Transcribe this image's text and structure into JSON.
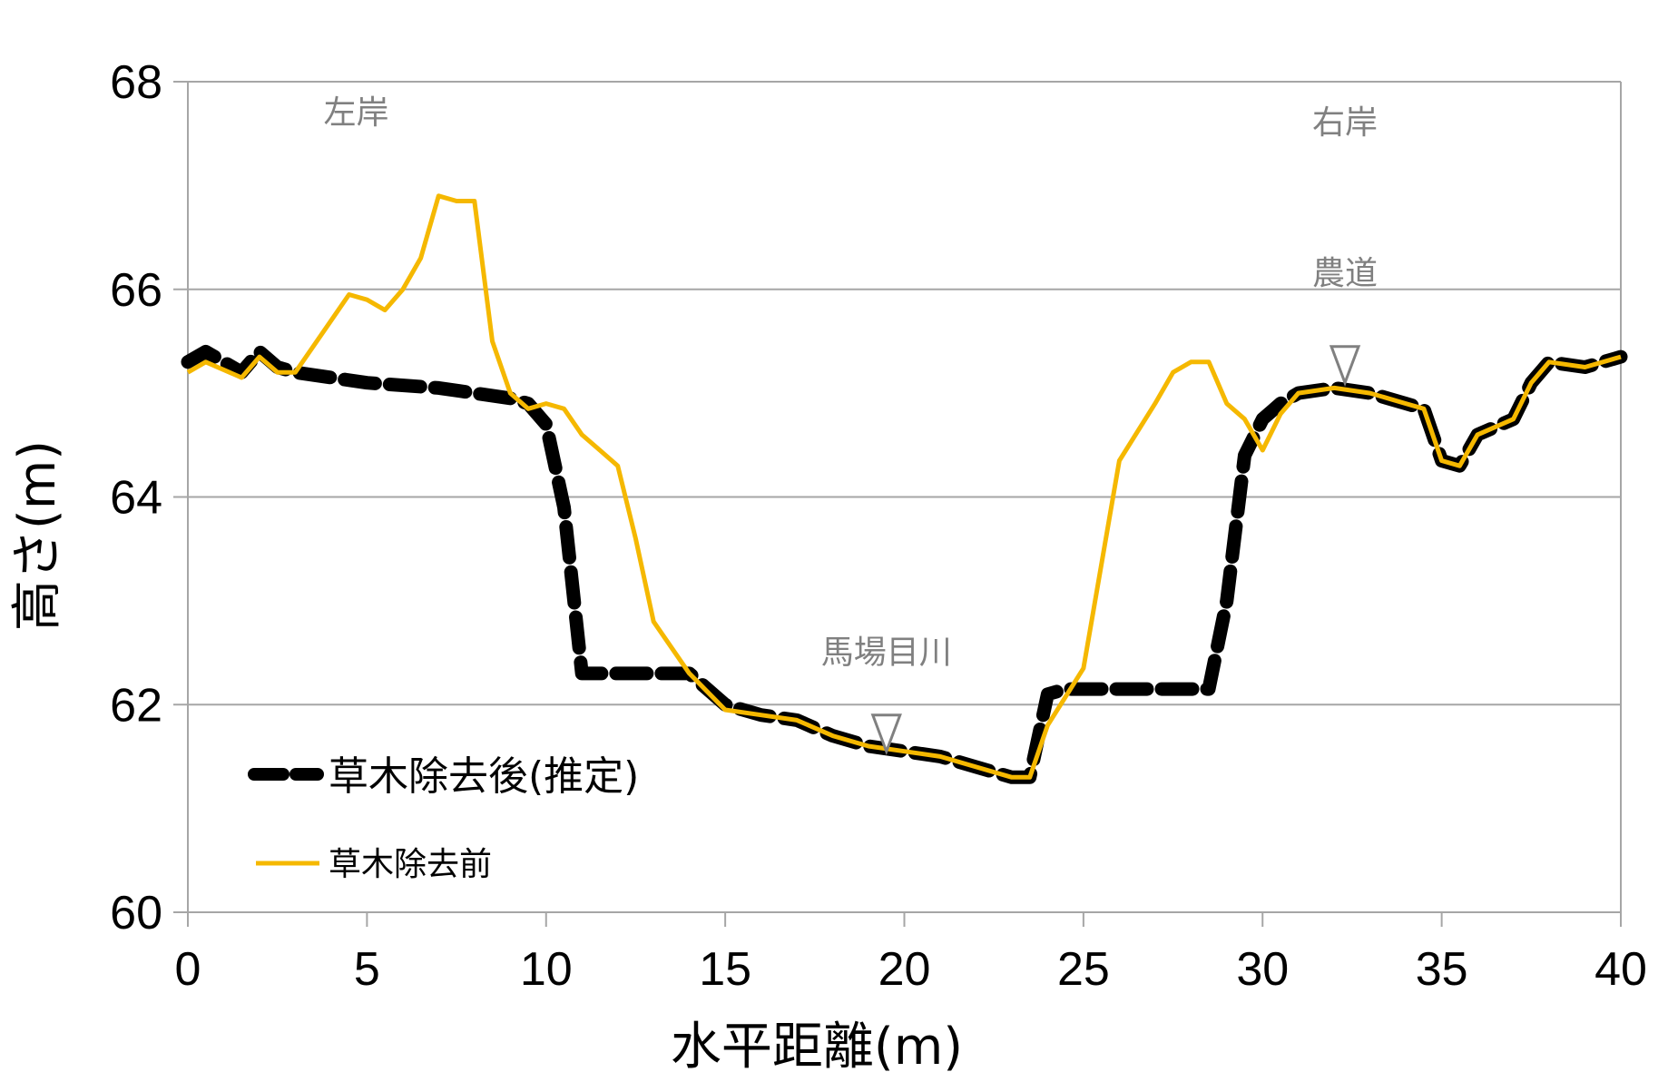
{
  "chart_data": {
    "type": "line",
    "xlabel": "水平距離(m)",
    "ylabel": "高さ(m)",
    "xlim": [
      0,
      40
    ],
    "ylim": [
      60,
      68
    ],
    "x_ticks": [
      "0",
      "5",
      "10",
      "15",
      "20",
      "25",
      "30",
      "35",
      "40"
    ],
    "y_ticks": [
      "60",
      "62",
      "64",
      "66",
      "68"
    ],
    "grid": "horizontal",
    "legend": "bottom-left",
    "colors": {
      "after": "#000000",
      "before": "#F5B800",
      "grid": "#A6A6A6",
      "annotation": "#808080"
    },
    "series": [
      {
        "name": "草木除去後(推定)",
        "style": "dashed",
        "x": [
          0,
          0.5,
          1.5,
          2,
          2.5,
          3,
          5,
          7,
          9,
          9.5,
          10,
          10.5,
          11,
          12,
          14,
          15,
          16,
          17,
          18,
          19,
          20,
          21,
          22,
          23,
          23.5,
          24,
          24.5,
          26,
          28.5,
          29,
          29.5,
          30,
          30.5,
          31,
          32,
          33,
          34,
          34.5,
          35,
          35.5,
          36,
          37,
          37.5,
          38,
          39,
          40
        ],
        "y": [
          65.3,
          65.4,
          65.2,
          65.4,
          65.25,
          65.2,
          65.1,
          65.05,
          64.95,
          64.9,
          64.7,
          63.9,
          62.3,
          62.3,
          62.3,
          62.0,
          61.9,
          61.85,
          61.7,
          61.6,
          61.55,
          61.5,
          61.4,
          61.3,
          61.3,
          62.1,
          62.15,
          62.15,
          62.15,
          63.0,
          64.4,
          64.75,
          64.9,
          65.0,
          65.05,
          65.0,
          64.9,
          64.85,
          64.35,
          64.3,
          64.6,
          64.75,
          65.1,
          65.3,
          65.25,
          65.35
        ]
      },
      {
        "name": "草木除去前",
        "style": "solid",
        "x": [
          0,
          0.5,
          1.5,
          2,
          2.5,
          3,
          4,
          4.5,
          5,
          5.5,
          6,
          6.5,
          7,
          7.5,
          8,
          8.5,
          9,
          9.5,
          10,
          10.5,
          11,
          11.5,
          12,
          12.5,
          13,
          14,
          15,
          16,
          17,
          18,
          19,
          20,
          21,
          22,
          23,
          23.5,
          24,
          25,
          26,
          27,
          27.5,
          28,
          28.5,
          29,
          29.5,
          30,
          30.5,
          31,
          32,
          33,
          34,
          34.5,
          35,
          35.5,
          36,
          37,
          37.5,
          38,
          39,
          40
        ],
        "y": [
          65.2,
          65.3,
          65.15,
          65.35,
          65.2,
          65.2,
          65.7,
          65.95,
          65.9,
          65.8,
          66.0,
          66.3,
          66.9,
          66.85,
          66.85,
          65.5,
          65.0,
          64.85,
          64.9,
          64.85,
          64.6,
          64.45,
          64.3,
          63.6,
          62.8,
          62.3,
          61.95,
          61.9,
          61.85,
          61.7,
          61.6,
          61.55,
          61.5,
          61.4,
          61.3,
          61.3,
          61.8,
          62.35,
          64.35,
          64.9,
          65.2,
          65.3,
          65.3,
          64.9,
          64.75,
          64.45,
          64.8,
          65.0,
          65.05,
          65.0,
          64.9,
          64.85,
          64.35,
          64.3,
          64.6,
          64.75,
          65.1,
          65.3,
          65.25,
          65.35
        ]
      }
    ],
    "annotations": [
      {
        "id": "left_bank",
        "text": "左岸",
        "x": 4.7,
        "y": 67.6
      },
      {
        "id": "right_bank",
        "text": "右岸",
        "x": 32.3,
        "y": 67.5
      },
      {
        "id": "farm_road",
        "text": "農道",
        "x": 32.3,
        "y": 66.05,
        "marker_x": 32.3,
        "marker_y": 65.1
      },
      {
        "id": "river",
        "text": "馬場目川",
        "x": 19.5,
        "y": 62.4,
        "marker_x": 19.5,
        "marker_y": 61.55
      }
    ]
  }
}
